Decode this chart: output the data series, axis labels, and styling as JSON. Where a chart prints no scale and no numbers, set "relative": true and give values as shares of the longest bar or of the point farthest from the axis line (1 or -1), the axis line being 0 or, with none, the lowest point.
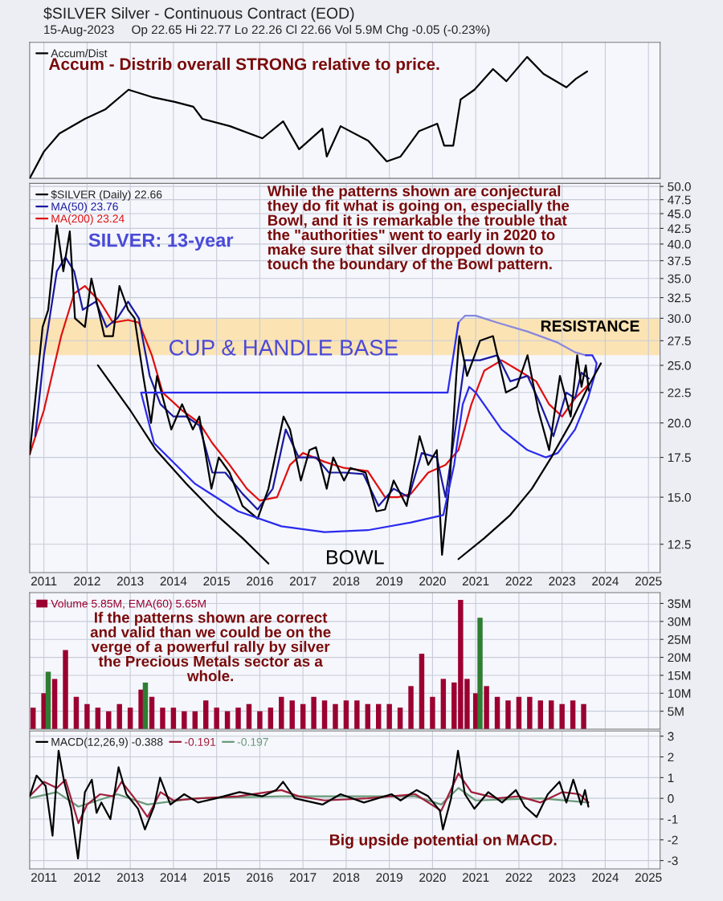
{
  "chart_data": [
    {
      "type": "line",
      "title": "$SILVER Silver - Continuous Contract (EOD)",
      "subtitle": "15-Aug-2023     Op 22.65 Hi 22.77 Lo 22.26 Cl 22.66 Vol 5.9M Chg -0.05 (-0.23%)",
      "relative": true,
      "xlim": [
        2010.67,
        2025.27
      ],
      "tick_labels": false,
      "grid": true,
      "legend": "top left",
      "annotations": [
        "Accum - Distrib overall STRONG relative to price."
      ],
      "series": [
        {
          "name": "Accum/Dist",
          "color": "#000000",
          "x": [
            2010.67,
            2011.0,
            2011.36,
            2011.95,
            2012.43,
            2012.96,
            2013.5,
            2014.03,
            2014.46,
            2014.67,
            2015.31,
            2016.06,
            2016.54,
            2016.91,
            2017.45,
            2017.55,
            2017.87,
            2018.51,
            2018.94,
            2019.26,
            2019.69,
            2020.11,
            2020.27,
            2020.48,
            2020.65,
            2020.97,
            2021.4,
            2021.71,
            2022.19,
            2022.57,
            2023.1,
            2023.32,
            2023.58
          ],
          "values": [
            0,
            0.22,
            0.37,
            0.49,
            0.57,
            0.73,
            0.67,
            0.63,
            0.59,
            0.49,
            0.43,
            0.33,
            0.47,
            0.24,
            0.41,
            0.18,
            0.43,
            0.31,
            0.14,
            0.18,
            0.39,
            0.45,
            0.27,
            0.27,
            0.65,
            0.73,
            0.9,
            0.8,
            1.0,
            0.86,
            0.75,
            0.82,
            0.88
          ]
        }
      ]
    },
    {
      "type": "line",
      "log": "y",
      "xlim": [
        2010.67,
        2025.27
      ],
      "ylim": [
        11.2,
        50.6
      ],
      "grid": true,
      "legend": "top left",
      "xticks": [
        2011,
        2012,
        2013,
        2014,
        2015,
        2016,
        2017,
        2018,
        2019,
        2020,
        2021,
        2022,
        2023,
        2024,
        2025
      ],
      "yticks": [
        12.5,
        {
          "value": 15,
          "label": "15.0"
        },
        17.5,
        {
          "value": 20,
          "label": "20.0"
        },
        22.5,
        {
          "value": 25,
          "label": "25.0"
        },
        27.5,
        {
          "value": 30,
          "label": "30.0"
        },
        32.5,
        {
          "value": 35,
          "label": "35.0"
        },
        37.5,
        {
          "value": 40,
          "label": "40.0"
        },
        42.5,
        {
          "value": 45,
          "label": "45.0"
        },
        47.5,
        {
          "value": 50,
          "label": "50.0"
        }
      ],
      "bands": [
        {
          "axis": "y",
          "from": 26,
          "to": 30,
          "color": "#fbe3b4"
        }
      ],
      "annotations": [
        "SILVER: 13-year",
        "While the patterns shown are conjectural\nthey do fit what is going on, especially the\nBowl, and it is remarkable the trouble that\nthe \"authorities\" went to early in 2020 to\nmake sure that silver dropped down to\ntouch the boundary of the Bowl pattern.",
        "CUP & HANDLE BASE",
        "RESISTANCE",
        "BOWL"
      ],
      "series": [
        {
          "color": "#000000",
          "x": [
            2012.25,
            2013.0,
            2013.6,
            2014.3,
            2015.0,
            2015.6,
            2016.2,
            2016.45,
            2018.3,
            2020.1,
            2020.6,
            2021.2,
            2021.8,
            2022.3,
            2022.75,
            2023.2,
            2023.6,
            2023.9
          ],
          "values": [
            25,
            21,
            18,
            15.8,
            14,
            12.8,
            11.6,
            null,
            null,
            null,
            11.8,
            12.8,
            14,
            15.5,
            17.5,
            20,
            23,
            25.2
          ]
        },
        {
          "color": "#2a2aee",
          "x": [
            2020.6,
            2020.35,
            2013.25,
            2013.55,
            2014.5,
            2015.5,
            2016.5,
            2017.5,
            2018.5,
            2019.5,
            2020.25,
            2020.5,
            2020.7,
            2020.85,
            2021.0,
            2021.6,
            2022.2,
            2022.62,
            2022.9,
            2023.3,
            2023.6,
            2023.75,
            2023.8,
            2023.7,
            2023.55
          ],
          "values": [
            29.5,
            22.5,
            22.5,
            18.5,
            15.8,
            14.2,
            13.4,
            13.1,
            13.2,
            13.6,
            14,
            17,
            21.5,
            23,
            22.5,
            19.5,
            18,
            17.5,
            17.8,
            19.5,
            22,
            24,
            25.2,
            26,
            26
          ]
        },
        {
          "color": "#8888dd",
          "x": [
            2020.6,
            2020.75,
            2021.0,
            2021.5,
            2022.2,
            2022.9,
            2023.3,
            2023.55
          ],
          "values": [
            29.5,
            30.3,
            30.3,
            29.5,
            28.5,
            27.3,
            26.3,
            26
          ]
        },
        {
          "name": "$SILVER (Daily) 22.66",
          "color": "#000000",
          "x": [
            2010.67,
            2010.83,
            2010.97,
            2011.1,
            2011.3,
            2011.45,
            2011.6,
            2011.72,
            2011.95,
            2012.1,
            2012.4,
            2012.6,
            2012.75,
            2012.95,
            2013.1,
            2013.3,
            2013.48,
            2013.62,
            2013.95,
            2014.2,
            2014.45,
            2014.6,
            2014.88,
            2015.05,
            2015.3,
            2015.6,
            2015.95,
            2016.2,
            2016.55,
            2016.7,
            2016.95,
            2017.15,
            2017.3,
            2017.55,
            2017.7,
            2017.95,
            2018.1,
            2018.45,
            2018.7,
            2018.9,
            2019.1,
            2019.4,
            2019.7,
            2019.9,
            2020.1,
            2020.22,
            2020.4,
            2020.55,
            2020.62,
            2020.8,
            2021.1,
            2021.4,
            2021.7,
            2021.95,
            2022.2,
            2022.45,
            2022.7,
            2022.95,
            2023.2,
            2023.35,
            2023.45,
            2023.55,
            2023.62
          ],
          "values": [
            17.7,
            23,
            29,
            31,
            43,
            36,
            42,
            30,
            29,
            35,
            28,
            28,
            34,
            31,
            30,
            24,
            20,
            24,
            19.5,
            21.5,
            19.5,
            20.5,
            15.5,
            17.5,
            16.5,
            14.5,
            13.8,
            15.5,
            20.5,
            19.5,
            16,
            18,
            18.2,
            15.5,
            17.5,
            16,
            16.8,
            16.5,
            14.2,
            14.3,
            16,
            14.5,
            19,
            17,
            18,
            12,
            16,
            24,
            28,
            24,
            27.5,
            28,
            22.5,
            23,
            26,
            21,
            18,
            24,
            20.5,
            26,
            23,
            25,
            22.66
          ]
        },
        {
          "name": "MA(50) 23.76",
          "color": "#1a1aa0",
          "x": [
            2010.8,
            2011.0,
            2011.3,
            2011.5,
            2011.7,
            2011.9,
            2012.2,
            2012.45,
            2012.7,
            2012.95,
            2013.2,
            2013.45,
            2013.7,
            2014.0,
            2014.3,
            2014.6,
            2014.9,
            2015.2,
            2015.6,
            2015.95,
            2016.3,
            2016.6,
            2016.9,
            2017.3,
            2017.6,
            2017.95,
            2018.4,
            2018.75,
            2019.1,
            2019.45,
            2019.75,
            2020.1,
            2020.3,
            2020.55,
            2020.75,
            2021.1,
            2021.5,
            2021.8,
            2022.2,
            2022.5,
            2022.8,
            2023.1,
            2023.3,
            2023.45,
            2023.62
          ],
          "values": [
            19,
            26,
            36,
            38,
            36,
            31,
            32,
            29,
            30,
            32,
            30,
            24,
            21.5,
            20.5,
            20.5,
            19.8,
            16.5,
            16.5,
            15.2,
            14.3,
            15.5,
            19.5,
            17.5,
            17.5,
            16.5,
            16.5,
            16.4,
            14.5,
            15.5,
            15,
            17.8,
            17.5,
            15,
            20,
            25.5,
            25.5,
            26,
            23.5,
            24,
            21.5,
            19,
            22.5,
            22,
            24.3,
            23.76
          ]
        },
        {
          "name": "MA(200) 23.24",
          "color": "#e01010",
          "x": [
            2010.67,
            2011.0,
            2011.4,
            2011.7,
            2011.95,
            2012.3,
            2012.6,
            2012.95,
            2013.2,
            2013.5,
            2013.75,
            2014.2,
            2014.6,
            2014.9,
            2015.3,
            2015.7,
            2016.0,
            2016.4,
            2016.7,
            2017.0,
            2017.5,
            2017.95,
            2018.5,
            2018.9,
            2019.2,
            2019.5,
            2019.9,
            2020.3,
            2020.6,
            2020.9,
            2021.2,
            2021.6,
            2022.0,
            2022.4,
            2022.7,
            2023.0,
            2023.3,
            2023.62
          ],
          "values": [
            17.7,
            21,
            28,
            33,
            34,
            32,
            29.5,
            29.8,
            29.5,
            26,
            22.5,
            21,
            20,
            18.5,
            17,
            15.5,
            14.8,
            15,
            17,
            17.8,
            17.2,
            16.8,
            16.6,
            15,
            15,
            15.2,
            16.5,
            17,
            18,
            21.5,
            24.5,
            25.5,
            24.5,
            23.5,
            21.5,
            20.5,
            22,
            23.24
          ]
        }
      ]
    },
    {
      "type": "bar",
      "xlim": [
        2010.67,
        2025.27
      ],
      "ylim": [
        0,
        38
      ],
      "tick_labels": "y",
      "grid": true,
      "legend": "top left",
      "xticks": [
        2011,
        2012,
        2013,
        2014,
        2015,
        2016,
        2017,
        2018,
        2019,
        2020,
        2021,
        2022,
        2023,
        2024,
        2025
      ],
      "yticks": [
        {
          "value": 5,
          "label": "5M"
        },
        {
          "value": 10,
          "label": "10M"
        },
        {
          "value": 15,
          "label": "15M"
        },
        {
          "value": 20,
          "label": "20M"
        },
        {
          "value": 25,
          "label": "25M"
        },
        {
          "value": 30,
          "label": "30M"
        },
        {
          "value": 35,
          "label": "35M"
        }
      ],
      "annotations": [
        "If the patterns shown are correct\nand valid than we could be on the\nverge of a powerful rally by silver\nthe Precious Metals sector as a\nwhole."
      ],
      "series": [
        {
          "name": "Volume 5.85M, EMA(60) 5.65M",
          "color": "#9b0030",
          "x": [
            2010.75,
            2011.0,
            2011.25,
            2011.5,
            2011.75,
            2012.0,
            2012.25,
            2012.5,
            2012.75,
            2013.0,
            2013.25,
            2013.5,
            2013.75,
            2014.0,
            2014.25,
            2014.5,
            2014.75,
            2015.0,
            2015.25,
            2015.5,
            2015.75,
            2016.0,
            2016.25,
            2016.5,
            2016.75,
            2017.0,
            2017.25,
            2017.5,
            2017.75,
            2018.0,
            2018.25,
            2018.5,
            2018.75,
            2019.0,
            2019.25,
            2019.5,
            2019.75,
            2020.0,
            2020.25,
            2020.5,
            2020.65,
            2020.8,
            2021.0,
            2021.25,
            2021.5,
            2021.75,
            2022.0,
            2022.25,
            2022.5,
            2022.75,
            2023.0,
            2023.25,
            2023.5
          ],
          "values": [
            6,
            10,
            14,
            22,
            9,
            7,
            6,
            5,
            7,
            6,
            11,
            9,
            6,
            6,
            5,
            5,
            8,
            6,
            5,
            6,
            7,
            5,
            6,
            9,
            8,
            7,
            9,
            8,
            7,
            8,
            8,
            7,
            7,
            7,
            6,
            12,
            21,
            9,
            14,
            13,
            36,
            14,
            10,
            12,
            9,
            8,
            9,
            9,
            8,
            8,
            7,
            8,
            7
          ]
        },
        {
          "color": "#2e7d32",
          "x": [
            2011.1,
            2013.35,
            2021.1
          ],
          "values": [
            16,
            13,
            31
          ]
        }
      ]
    },
    {
      "type": "line",
      "xlim": [
        2010.67,
        2025.27
      ],
      "ylim": [
        -3.4,
        3.25
      ],
      "grid": true,
      "legend": "top left",
      "xticks": [
        2011,
        2012,
        2013,
        2014,
        2015,
        2016,
        2017,
        2018,
        2019,
        2020,
        2021,
        2022,
        2023,
        2024,
        2025
      ],
      "yticks": [
        -3,
        -2,
        -1,
        0,
        1,
        2,
        3
      ],
      "annotations": [
        "Big upside potential on MACD."
      ],
      "series": [
        {
          "name": "MACD(12,26,9) -0.388",
          "color": "#000000",
          "x": [
            2010.67,
            2010.83,
            2011.04,
            2011.2,
            2011.34,
            2011.47,
            2011.63,
            2011.79,
            2011.95,
            2012.11,
            2012.22,
            2012.33,
            2012.54,
            2012.73,
            2012.91,
            2013.18,
            2013.34,
            2013.55,
            2013.69,
            2013.93,
            2014.25,
            2014.57,
            2014.99,
            2015.53,
            2016.06,
            2016.38,
            2016.54,
            2016.81,
            2017.45,
            2017.87,
            2018.41,
            2019.05,
            2019.26,
            2019.63,
            2019.9,
            2020.17,
            2020.24,
            2020.43,
            2020.59,
            2020.75,
            2020.97,
            2021.29,
            2021.61,
            2021.93,
            2022.14,
            2022.41,
            2022.67,
            2022.94,
            2023.1,
            2023.26,
            2023.44,
            2023.53,
            2023.61
          ],
          "values": [
            0.1,
            1.1,
            0.6,
            -1.8,
            2.3,
            0.8,
            -0.5,
            -2.9,
            0.3,
            0.9,
            -0.7,
            -0.2,
            -1.0,
            1.5,
            0.2,
            -0.5,
            -1.5,
            -0.4,
            1.0,
            -0.3,
            0.2,
            -0.2,
            0.0,
            0.3,
            0.1,
            0.4,
            0.8,
            0.0,
            -0.3,
            0.2,
            -0.2,
            0.2,
            -0.1,
            0.4,
            0.1,
            -0.6,
            -1.5,
            0.0,
            2.3,
            0.2,
            -0.5,
            0.3,
            -0.2,
            0.4,
            -0.4,
            -0.9,
            0.2,
            0.8,
            -0.2,
            0.9,
            -0.3,
            0.4,
            -0.4
          ]
        },
        {
          "name": "-0.191",
          "color": "#a0203c",
          "x": [
            2010.67,
            2011.0,
            2011.3,
            2011.5,
            2011.8,
            2012.0,
            2012.3,
            2012.6,
            2012.8,
            2013.1,
            2013.4,
            2013.7,
            2014.0,
            2014.6,
            2015.5,
            2016.5,
            2016.9,
            2017.5,
            2018.5,
            2019.6,
            2020.2,
            2020.6,
            2020.9,
            2021.5,
            2022.0,
            2022.5,
            2023.0,
            2023.4,
            2023.61
          ],
          "values": [
            0.1,
            0.8,
            0.5,
            0.9,
            -1.2,
            -0.3,
            0.2,
            0.1,
            0.8,
            0.0,
            -0.9,
            0.3,
            -0.1,
            0.0,
            0.1,
            0.4,
            0.1,
            -0.1,
            0.0,
            0.2,
            -0.6,
            1.2,
            0.3,
            0.0,
            0.1,
            -0.2,
            0.3,
            0.2,
            -0.2
          ]
        },
        {
          "name": "-0.197",
          "color": "#6a9a7a",
          "x": [
            2010.67,
            2011.3,
            2011.8,
            2012.7,
            2013.4,
            2014.5,
            2016.5,
            2019.6,
            2020.2,
            2020.6,
            2021.0,
            2022.5,
            2023.61
          ],
          "values": [
            0.0,
            0.3,
            -0.4,
            0.2,
            -0.3,
            0.0,
            0.1,
            0.1,
            -0.3,
            0.5,
            -0.1,
            0.0,
            -0.2
          ]
        }
      ]
    }
  ]
}
